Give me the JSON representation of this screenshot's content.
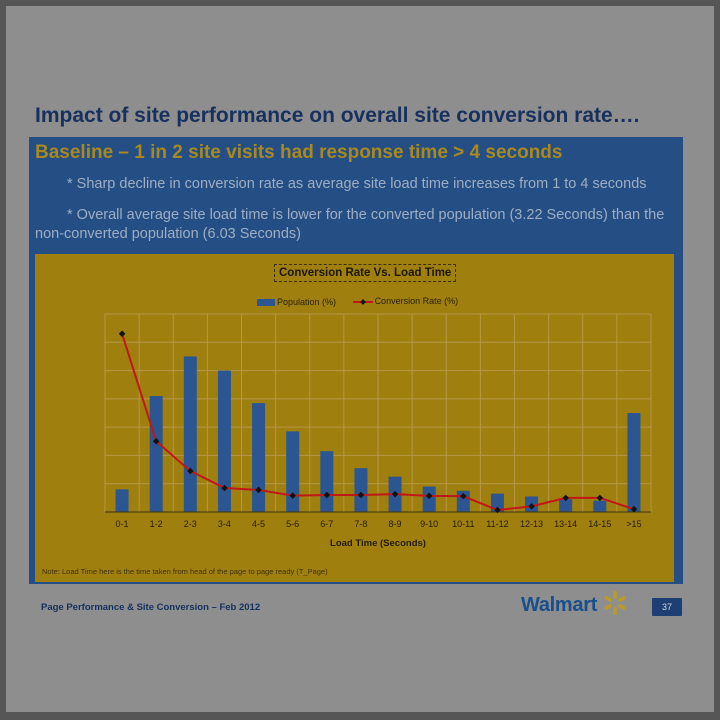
{
  "slide": {
    "title": "Impact of site performance on overall site conversion rate….",
    "baseline": "Baseline – 1 in 2 site visits had response time > 4 seconds",
    "bullets": [
      "* Sharp decline in conversion rate as average site load time increases from 1 to 4 seconds",
      "* Overall average site load time is lower for the converted population (3.22 Seconds) than the non-converted population (6.03 Seconds)"
    ],
    "note": "Note: Load Time here is the time taken from head of the page to page ready (T_Page)",
    "footer": "Page Performance & Site Conversion – Feb 2012",
    "brand": "Walmart",
    "page_number": "37"
  },
  "colors": {
    "bar": "#2b5692",
    "line": "#c21717",
    "marker": "#111111",
    "chart_bg": "#9f7f0e",
    "grid": "#b5974a"
  },
  "chart_data": {
    "type": "bar",
    "title": "Conversion Rate Vs. Load Time",
    "xlabel": "Load Time (Seconds)",
    "ylabel": "",
    "categories": [
      "0-1",
      "1-2",
      "2-3",
      "3-4",
      "4-5",
      "5-6",
      "6-7",
      "7-8",
      "8-9",
      "9-10",
      "10-11",
      "11-12",
      "12-13",
      "13-14",
      "14-15",
      ">15"
    ],
    "ylim": [
      0,
      7
    ],
    "grid": true,
    "legend": "top",
    "series": [
      {
        "name": "Population (%)",
        "kind": "bar",
        "values": [
          0.8,
          4.1,
          5.5,
          5.0,
          3.85,
          2.85,
          2.15,
          1.55,
          1.25,
          0.9,
          0.75,
          0.65,
          0.55,
          0.45,
          0.4,
          3.5
        ]
      },
      {
        "name": "Conversion Rate (%)",
        "kind": "line",
        "values": [
          6.3,
          2.5,
          1.45,
          0.85,
          0.78,
          0.58,
          0.6,
          0.6,
          0.63,
          0.57,
          0.56,
          0.07,
          0.2,
          0.5,
          0.5,
          0.1
        ]
      }
    ]
  }
}
